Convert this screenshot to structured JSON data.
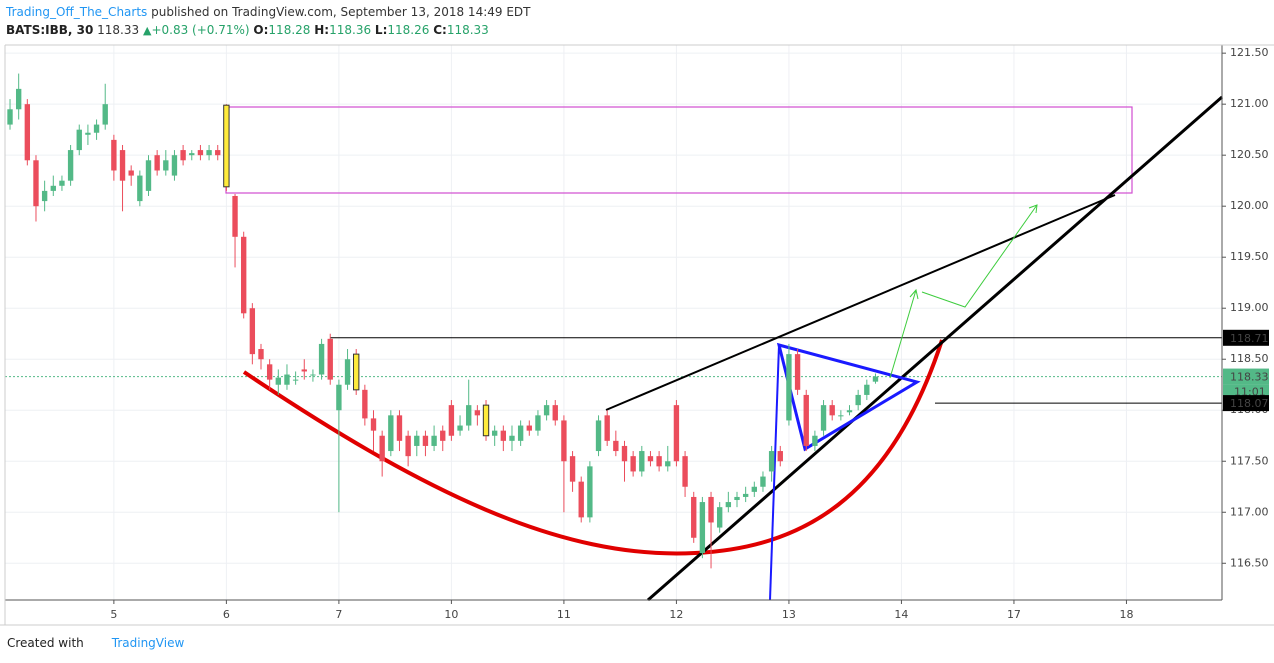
{
  "header": {
    "author": "Trading_Off_The_Charts",
    "published": "published on TradingView.com, September 13, 2018 14:49 EDT"
  },
  "legend": {
    "symbol": "BATS:IBB, 30",
    "last": 118.33,
    "change": "+0.83 (+0.71%)",
    "open_label": "O:",
    "open": 118.28,
    "high_label": "H:",
    "high": 118.36,
    "low_label": "L:",
    "low": 118.26,
    "close_label": "C:",
    "close": 118.33
  },
  "footer": {
    "created_with": "Created with",
    "brand": "TradingView"
  },
  "chart_data": {
    "type": "candlestick",
    "up_color": "#53b987",
    "down_color": "#eb4d5c",
    "highlight_color": "#ffeb3b",
    "highlight_indices": [
      25,
      40,
      55
    ],
    "x": [
      0,
      1,
      2,
      3,
      4,
      5,
      6,
      7,
      8,
      9,
      10,
      11,
      12,
      13,
      14,
      15,
      16,
      17,
      18,
      19,
      20,
      21,
      22,
      23,
      24,
      25,
      26,
      27,
      28,
      29,
      30,
      31,
      32,
      33,
      34,
      35,
      36,
      37,
      38,
      39,
      40,
      41,
      42,
      43,
      44,
      45,
      46,
      47,
      48,
      49,
      50,
      51,
      52,
      53,
      54,
      55,
      56,
      57,
      58,
      59,
      60,
      61,
      62,
      63,
      64,
      65,
      66,
      67,
      68,
      69,
      70,
      71,
      72,
      73,
      74,
      75,
      76,
      77,
      78,
      79,
      80,
      81,
      82,
      83,
      84,
      85,
      86,
      87,
      88,
      89,
      90,
      91,
      92,
      93,
      94,
      95,
      96,
      97,
      98,
      99,
      100
    ],
    "open": [
      120.8,
      120.95,
      121.0,
      120.45,
      120.05,
      120.15,
      120.2,
      120.25,
      120.55,
      120.7,
      120.72,
      120.8,
      120.65,
      120.55,
      120.35,
      120.05,
      120.15,
      120.5,
      120.35,
      120.3,
      120.55,
      120.5,
      120.55,
      120.5,
      120.55,
      120.99,
      120.1,
      119.7,
      119.0,
      118.6,
      118.45,
      118.25,
      118.25,
      118.3,
      118.4,
      118.35,
      118.35,
      118.7,
      118.0,
      118.25,
      118.55,
      118.2,
      117.92,
      117.75,
      117.6,
      117.95,
      117.75,
      117.65,
      117.75,
      117.65,
      117.8,
      118.05,
      117.8,
      117.85,
      118.0,
      118.05,
      117.75,
      117.8,
      117.7,
      117.7,
      117.85,
      117.8,
      117.95,
      118.05,
      117.9,
      117.55,
      117.3,
      116.95,
      117.6,
      117.95,
      117.7,
      117.65,
      117.55,
      117.4,
      117.55,
      117.55,
      117.45,
      118.05,
      117.55,
      117.15,
      116.6,
      117.15,
      116.85,
      117.05,
      117.12,
      117.15,
      117.2,
      117.25,
      117.4,
      117.6,
      117.9,
      118.55,
      118.15,
      117.65,
      117.8,
      118.05,
      117.95,
      117.98,
      118.05,
      118.15,
      118.28
    ],
    "high": [
      121.05,
      121.3,
      121.05,
      120.5,
      120.25,
      120.3,
      120.3,
      120.6,
      120.8,
      120.8,
      120.85,
      121.2,
      120.7,
      120.6,
      120.4,
      120.35,
      120.5,
      120.55,
      120.55,
      120.55,
      120.6,
      120.55,
      120.6,
      120.6,
      120.6,
      121.0,
      120.12,
      119.75,
      119.05,
      118.65,
      118.5,
      118.4,
      118.45,
      118.38,
      118.5,
      118.4,
      118.7,
      118.75,
      118.3,
      118.6,
      118.6,
      118.25,
      118.0,
      117.8,
      118.0,
      118.0,
      117.8,
      117.8,
      117.8,
      117.85,
      117.85,
      118.1,
      117.95,
      118.3,
      118.05,
      118.1,
      117.85,
      117.85,
      117.85,
      117.9,
      117.9,
      118.0,
      118.1,
      118.1,
      117.95,
      117.6,
      117.35,
      117.5,
      117.95,
      118.0,
      117.8,
      117.7,
      117.6,
      117.65,
      117.6,
      117.6,
      117.65,
      118.1,
      117.6,
      117.2,
      117.15,
      117.2,
      117.1,
      117.2,
      117.2,
      117.25,
      117.3,
      117.4,
      117.65,
      117.65,
      118.65,
      118.6,
      118.2,
      117.8,
      118.1,
      118.1,
      118.0,
      118.05,
      118.2,
      118.3,
      118.36
    ],
    "low": [
      120.75,
      120.85,
      120.4,
      119.85,
      119.95,
      120.1,
      120.15,
      120.2,
      120.5,
      120.6,
      120.65,
      120.75,
      120.25,
      119.95,
      120.2,
      120.0,
      120.1,
      120.3,
      120.3,
      120.25,
      120.4,
      120.45,
      120.45,
      120.45,
      120.45,
      120.15,
      119.4,
      118.9,
      118.45,
      118.4,
      118.2,
      118.15,
      118.2,
      118.25,
      118.3,
      118.28,
      118.3,
      118.25,
      117.0,
      118.2,
      118.15,
      117.85,
      117.6,
      117.35,
      117.55,
      117.6,
      117.45,
      117.55,
      117.55,
      117.6,
      117.6,
      117.7,
      117.75,
      117.8,
      117.85,
      117.7,
      117.65,
      117.6,
      117.6,
      117.65,
      117.75,
      117.75,
      117.9,
      117.85,
      117.0,
      117.2,
      116.9,
      116.9,
      117.55,
      117.65,
      117.55,
      117.3,
      117.35,
      117.35,
      117.45,
      117.4,
      117.4,
      117.45,
      117.15,
      116.7,
      116.55,
      116.45,
      116.8,
      117.0,
      117.05,
      117.1,
      117.15,
      117.2,
      117.3,
      117.45,
      117.85,
      118.15,
      117.6,
      117.6,
      117.75,
      117.9,
      117.9,
      117.95,
      118.0,
      118.1,
      118.26
    ],
    "close": [
      120.95,
      121.15,
      120.45,
      120.0,
      120.15,
      120.2,
      120.25,
      120.55,
      120.75,
      120.72,
      120.8,
      121.0,
      120.35,
      120.25,
      120.3,
      120.3,
      120.45,
      120.35,
      120.45,
      120.5,
      120.45,
      120.52,
      120.5,
      120.55,
      120.5,
      120.19,
      119.7,
      118.95,
      118.55,
      118.5,
      118.3,
      118.32,
      118.35,
      118.3,
      118.38,
      118.35,
      118.65,
      118.3,
      118.25,
      118.5,
      118.2,
      117.92,
      117.8,
      117.5,
      117.95,
      117.7,
      117.55,
      117.75,
      117.65,
      117.75,
      117.7,
      117.75,
      117.85,
      118.05,
      117.95,
      117.75,
      117.8,
      117.7,
      117.75,
      117.85,
      117.8,
      117.95,
      118.05,
      117.9,
      117.5,
      117.3,
      116.95,
      117.45,
      117.9,
      117.7,
      117.6,
      117.5,
      117.4,
      117.6,
      117.5,
      117.45,
      117.5,
      117.5,
      117.25,
      116.75,
      117.1,
      116.9,
      117.05,
      117.1,
      117.15,
      117.18,
      117.25,
      117.35,
      117.6,
      117.5,
      118.55,
      118.2,
      117.65,
      117.75,
      118.05,
      117.95,
      117.95,
      118.0,
      118.15,
      118.25,
      118.33
    ],
    "xlim": [
      -0.58,
      140.04
    ],
    "xticks": [
      {
        "value": 12,
        "label": "5"
      },
      {
        "value": 25,
        "label": "6"
      },
      {
        "value": 38,
        "label": "7"
      },
      {
        "value": 51,
        "label": "10"
      },
      {
        "value": 64,
        "label": "11"
      },
      {
        "value": 77,
        "label": "12"
      },
      {
        "value": 90,
        "label": "13"
      },
      {
        "value": 103,
        "label": "14"
      },
      {
        "value": 116,
        "label": "17"
      },
      {
        "value": 129,
        "label": "18"
      }
    ],
    "ylim": [
      116.14,
      121.58
    ],
    "yticks": [
      {
        "value": 116.5,
        "label": "116.50"
      },
      {
        "value": 117,
        "label": "117.00"
      },
      {
        "value": 117.5,
        "label": "117.50"
      },
      {
        "value": 118,
        "label": "118.00"
      },
      {
        "value": 118.5,
        "label": "118.50"
      },
      {
        "value": 119,
        "label": "119.00"
      },
      {
        "value": 119.5,
        "label": "119.50"
      },
      {
        "value": 120,
        "label": "120.00"
      },
      {
        "value": 120.5,
        "label": "120.50"
      },
      {
        "value": 121,
        "label": "121.00"
      },
      {
        "value": 121.5,
        "label": "121.50"
      }
    ],
    "grid": true,
    "price_marks": [
      118.71,
      118.33,
      118.07
    ],
    "countdown": "11:01"
  }
}
